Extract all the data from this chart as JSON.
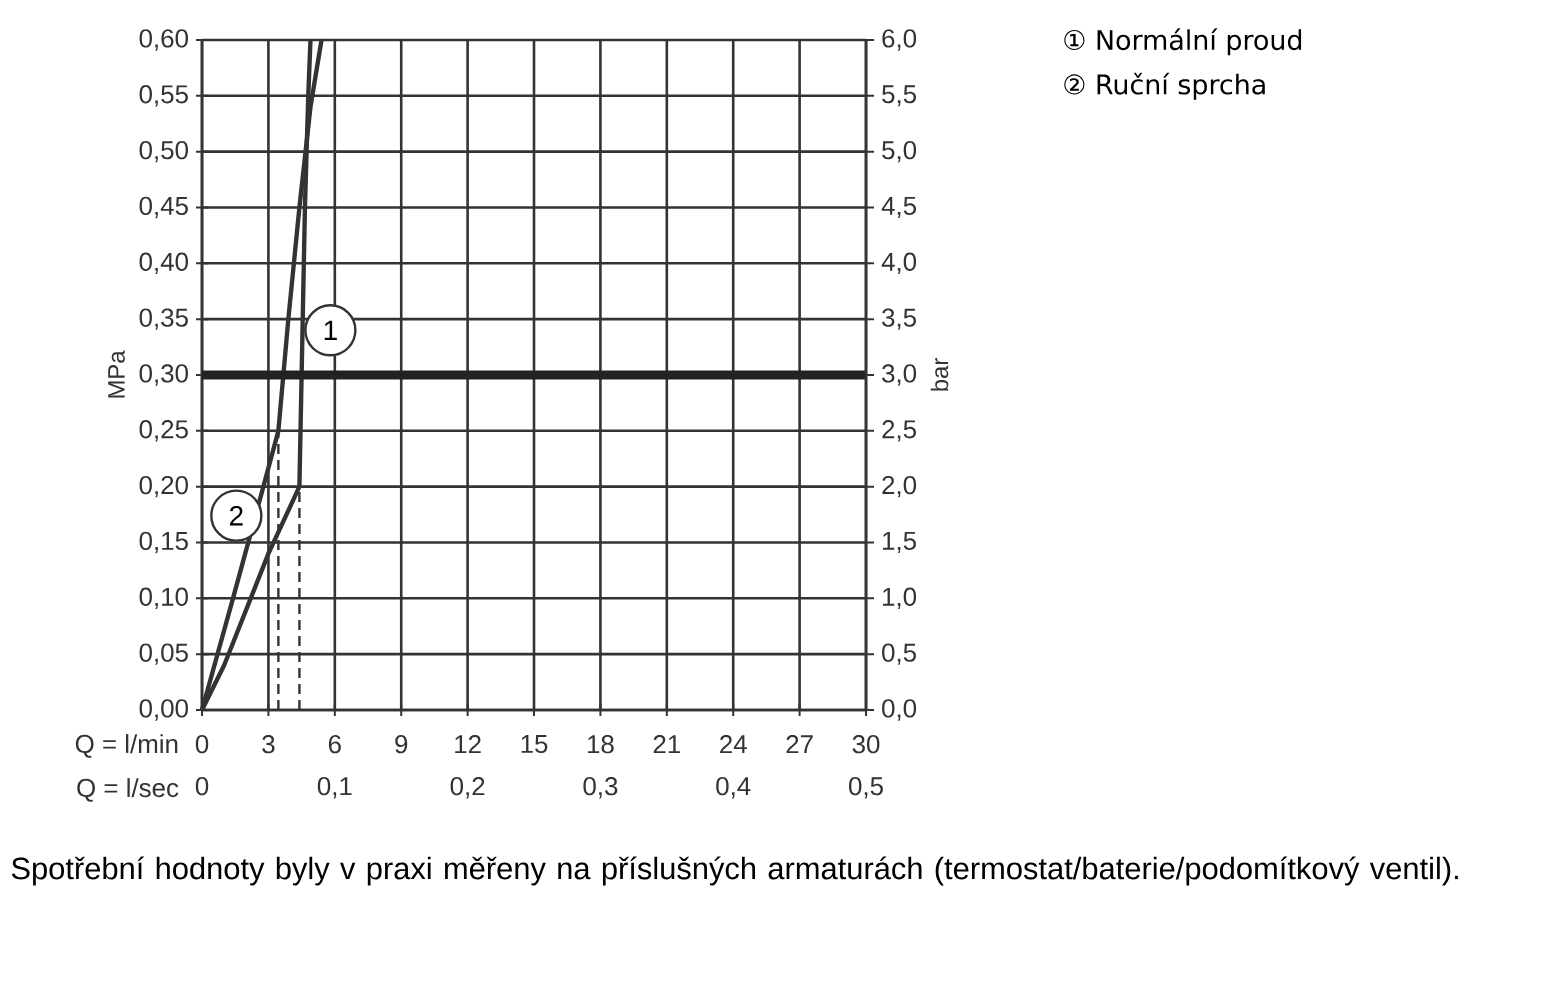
{
  "chart_data": {
    "type": "line",
    "xlabel": "Q = l/min",
    "ylabel": "MPa",
    "y2label": "bar",
    "x2label": "Q = l/sec",
    "xlim": [
      0,
      30
    ],
    "xticks": [
      0,
      3,
      6,
      9,
      12,
      15,
      18,
      21,
      24,
      27,
      30
    ],
    "ylim": [
      0,
      0.6
    ],
    "yticks": [
      {
        "value": 0,
        "label": "0,00"
      },
      {
        "value": 0.05,
        "label": "0,05"
      },
      {
        "value": 0.1,
        "label": "0,10"
      },
      {
        "value": 0.15,
        "label": "0,15"
      },
      {
        "value": 0.2,
        "label": "0,20"
      },
      {
        "value": 0.25,
        "label": "0,25"
      },
      {
        "value": 0.3,
        "label": "0,30"
      },
      {
        "value": 0.35,
        "label": "0,35"
      },
      {
        "value": 0.4,
        "label": "0,40"
      },
      {
        "value": 0.45,
        "label": "0,45"
      },
      {
        "value": 0.5,
        "label": "0,50"
      },
      {
        "value": 0.55,
        "label": "0,55"
      },
      {
        "value": 0.6,
        "label": "0,60"
      }
    ],
    "y2lim": [
      0,
      6
    ],
    "y2ticks": [
      {
        "value": 0,
        "label": "0,0"
      },
      {
        "value": 0.5,
        "label": "0,5"
      },
      {
        "value": 1,
        "label": "1,0"
      },
      {
        "value": 1.5,
        "label": "1,5"
      },
      {
        "value": 2,
        "label": "2,0"
      },
      {
        "value": 2.5,
        "label": "2,5"
      },
      {
        "value": 3,
        "label": "3,0"
      },
      {
        "value": 3.5,
        "label": "3,5"
      },
      {
        "value": 4,
        "label": "4,0"
      },
      {
        "value": 4.5,
        "label": "4,5"
      },
      {
        "value": 5,
        "label": "5,0"
      },
      {
        "value": 5.5,
        "label": "5,5"
      },
      {
        "value": 6,
        "label": "6,0"
      }
    ],
    "x2lim": [
      0,
      0.5
    ],
    "x2ticks": [
      0,
      {
        "value": 0.1,
        "label": "0,1"
      },
      {
        "value": 0.2,
        "label": "0,2"
      },
      {
        "value": 0.3,
        "label": "0,3"
      },
      {
        "value": 0.4,
        "label": "0,4"
      },
      {
        "value": 0.5,
        "label": "0,5"
      }
    ],
    "grid": true,
    "legend": "top right",
    "marker": "none",
    "series": [
      {
        "name": "① Normální proud",
        "color": "#333333",
        "x": [
          0,
          1,
          2,
          3,
          4.4,
          4.5,
          4.65,
          4.8,
          4.9
        ],
        "values": [
          0,
          0.04,
          0.09,
          0.14,
          0.2,
          0.3,
          0.45,
          0.55,
          0.6
        ]
      },
      {
        "name": "② Ruční sprcha",
        "color": "#333333",
        "x": [
          0,
          1.4,
          2.5,
          3.45,
          3.9,
          4.4,
          4.9,
          5.4
        ],
        "values": [
          0,
          0.1,
          0.18,
          0.25,
          0.35,
          0.45,
          0.54,
          0.6
        ]
      },
      {
        "color": "#333333",
        "line_style": "dashed",
        "x": [
          4.4,
          4.4
        ],
        "values": [
          0,
          0.2
        ]
      },
      {
        "color": "#333333",
        "line_style": "dashed",
        "x": [
          3.45,
          3.45
        ],
        "values": [
          0,
          0.25
        ]
      }
    ],
    "ref_lines": [
      {
        "axis": "y",
        "value": 0.3,
        "color": "#222222"
      }
    ],
    "annotations": [
      {
        "text": "1",
        "x": 5.8,
        "y": 0.34
      },
      {
        "text": "2",
        "x": 1.55,
        "y": 0.174
      },
      "Spotřební hodnoty byly v praxi měřeny na příslušných armaturách (termostat/baterie/podomítkový ventil)."
    ]
  }
}
